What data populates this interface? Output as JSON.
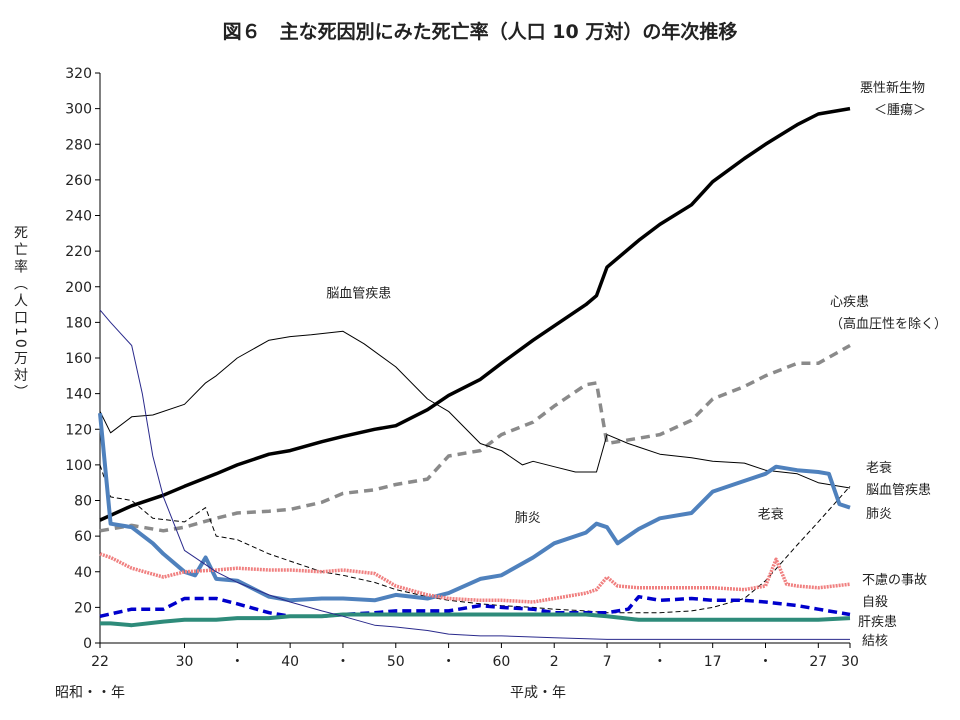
{
  "chart_data": {
    "type": "line",
    "title": "図６　主な死因別にみた死亡率（人口 10 万対）の年次推移",
    "ylabel": "死亡率（人口10万対）",
    "ylim": [
      0,
      320
    ],
    "yticks": [
      0,
      20,
      40,
      60,
      80,
      100,
      120,
      140,
      160,
      180,
      200,
      220,
      240,
      260,
      280,
      300,
      320
    ],
    "xlim": [
      1947,
      2018
    ],
    "xticks": [
      {
        "year": 1947,
        "label": "22"
      },
      {
        "year": 1955,
        "label": "30"
      },
      {
        "year": 1960,
        "label": "・"
      },
      {
        "year": 1965,
        "label": "40"
      },
      {
        "year": 1970,
        "label": "・"
      },
      {
        "year": 1975,
        "label": "50"
      },
      {
        "year": 1980,
        "label": "・"
      },
      {
        "year": 1985,
        "label": "60"
      },
      {
        "year": 1990,
        "label": "2"
      },
      {
        "year": 1995,
        "label": "7"
      },
      {
        "year": 2000,
        "label": "・"
      },
      {
        "year": 2005,
        "label": "17"
      },
      {
        "year": 2010,
        "label": "・"
      },
      {
        "year": 2015,
        "label": "27"
      },
      {
        "year": 2018,
        "label": "30"
      }
    ],
    "x_era_labels": [
      "昭和・・年",
      "平成・年"
    ],
    "grid": false,
    "series": [
      {
        "name": "悪性新生物",
        "label_lines": [
          "悪性新生物",
          "＜腫瘍＞"
        ],
        "color": "#000000",
        "width": 3.5,
        "dash": "",
        "points": [
          [
            1947,
            69
          ],
          [
            1950,
            77
          ],
          [
            1953,
            83
          ],
          [
            1955,
            88
          ],
          [
            1958,
            95
          ],
          [
            1960,
            100
          ],
          [
            1963,
            106
          ],
          [
            1965,
            108
          ],
          [
            1968,
            113
          ],
          [
            1970,
            116
          ],
          [
            1973,
            120
          ],
          [
            1975,
            122
          ],
          [
            1978,
            131
          ],
          [
            1980,
            139
          ],
          [
            1983,
            148
          ],
          [
            1985,
            157
          ],
          [
            1988,
            170
          ],
          [
            1990,
            178
          ],
          [
            1993,
            190
          ],
          [
            1994,
            195
          ],
          [
            1995,
            211
          ],
          [
            1998,
            226
          ],
          [
            2000,
            235
          ],
          [
            2003,
            246
          ],
          [
            2005,
            259
          ],
          [
            2008,
            272
          ],
          [
            2010,
            280
          ],
          [
            2013,
            291
          ],
          [
            2015,
            297
          ],
          [
            2018,
            300
          ]
        ]
      },
      {
        "name": "心疾患",
        "label_lines": [
          "心疾患",
          "（高血圧性を除く）"
        ],
        "color": "#8a8a8a",
        "width": 3.5,
        "dash": "9,6",
        "points": [
          [
            1947,
            63
          ],
          [
            1950,
            66
          ],
          [
            1953,
            63
          ],
          [
            1955,
            65
          ],
          [
            1958,
            70
          ],
          [
            1960,
            73
          ],
          [
            1963,
            74
          ],
          [
            1965,
            75
          ],
          [
            1968,
            79
          ],
          [
            1970,
            84
          ],
          [
            1973,
            86
          ],
          [
            1975,
            89
          ],
          [
            1978,
            92
          ],
          [
            1980,
            105
          ],
          [
            1983,
            108
          ],
          [
            1985,
            117
          ],
          [
            1988,
            124
          ],
          [
            1990,
            133
          ],
          [
            1993,
            145
          ],
          [
            1994,
            146
          ],
          [
            1995,
            112
          ],
          [
            1998,
            115
          ],
          [
            2000,
            117
          ],
          [
            2003,
            125
          ],
          [
            2005,
            137
          ],
          [
            2008,
            144
          ],
          [
            2010,
            150
          ],
          [
            2013,
            157
          ],
          [
            2015,
            157
          ],
          [
            2018,
            167
          ]
        ]
      },
      {
        "name": "老衰",
        "label_lines": [
          "老衰"
        ],
        "color": "#000000",
        "width": 1,
        "dash": "5,3",
        "points": [
          [
            1947,
            100
          ],
          [
            1948,
            82
          ],
          [
            1950,
            80
          ],
          [
            1952,
            70
          ],
          [
            1955,
            68
          ],
          [
            1957,
            76
          ],
          [
            1958,
            60
          ],
          [
            1960,
            58
          ],
          [
            1963,
            50
          ],
          [
            1965,
            46
          ],
          [
            1968,
            40
          ],
          [
            1970,
            38
          ],
          [
            1973,
            34
          ],
          [
            1975,
            30
          ],
          [
            1978,
            26
          ],
          [
            1980,
            24
          ],
          [
            1983,
            22
          ],
          [
            1985,
            21
          ],
          [
            1988,
            20
          ],
          [
            1990,
            19
          ],
          [
            1993,
            18
          ],
          [
            1995,
            17
          ],
          [
            1998,
            17
          ],
          [
            2000,
            17
          ],
          [
            2003,
            18
          ],
          [
            2005,
            20
          ],
          [
            2008,
            25
          ],
          [
            2010,
            35
          ],
          [
            2013,
            55
          ],
          [
            2015,
            68
          ],
          [
            2018,
            88
          ]
        ]
      },
      {
        "name": "脳血管疾患",
        "label_lines": [
          "脳血管疾患"
        ],
        "color": "#000000",
        "width": 1,
        "dash": "",
        "points": [
          [
            1947,
            130
          ],
          [
            1948,
            118
          ],
          [
            1950,
            127
          ],
          [
            1952,
            128
          ],
          [
            1955,
            134
          ],
          [
            1957,
            146
          ],
          [
            1958,
            150
          ],
          [
            1960,
            160
          ],
          [
            1963,
            170
          ],
          [
            1965,
            172
          ],
          [
            1967,
            173
          ],
          [
            1970,
            175
          ],
          [
            1972,
            168
          ],
          [
            1975,
            155
          ],
          [
            1978,
            137
          ],
          [
            1980,
            130
          ],
          [
            1983,
            112
          ],
          [
            1985,
            108
          ],
          [
            1987,
            100
          ],
          [
            1988,
            102
          ],
          [
            1990,
            99
          ],
          [
            1992,
            96
          ],
          [
            1994,
            96
          ],
          [
            1995,
            117
          ],
          [
            1997,
            112
          ],
          [
            2000,
            106
          ],
          [
            2003,
            104
          ],
          [
            2005,
            102
          ],
          [
            2008,
            101
          ],
          [
            2010,
            97
          ],
          [
            2013,
            95
          ],
          [
            2015,
            90
          ],
          [
            2018,
            87
          ]
        ]
      },
      {
        "name": "肺炎",
        "label_lines": [
          "肺炎"
        ],
        "color": "#4f81bd",
        "width": 4,
        "dash": "",
        "points": [
          [
            1947,
            129
          ],
          [
            1948,
            67
          ],
          [
            1950,
            65
          ],
          [
            1952,
            56
          ],
          [
            1953,
            50
          ],
          [
            1955,
            40
          ],
          [
            1956,
            38
          ],
          [
            1957,
            48
          ],
          [
            1958,
            36
          ],
          [
            1960,
            35
          ],
          [
            1963,
            26
          ],
          [
            1965,
            24
          ],
          [
            1968,
            25
          ],
          [
            1970,
            25
          ],
          [
            1973,
            24
          ],
          [
            1975,
            27
          ],
          [
            1978,
            25
          ],
          [
            1980,
            28
          ],
          [
            1983,
            36
          ],
          [
            1985,
            38
          ],
          [
            1988,
            48
          ],
          [
            1990,
            56
          ],
          [
            1993,
            62
          ],
          [
            1994,
            67
          ],
          [
            1995,
            65
          ],
          [
            1996,
            56
          ],
          [
            1998,
            64
          ],
          [
            2000,
            70
          ],
          [
            2003,
            73
          ],
          [
            2005,
            85
          ],
          [
            2008,
            91
          ],
          [
            2010,
            95
          ],
          [
            2011,
            99
          ],
          [
            2013,
            97
          ],
          [
            2015,
            96
          ],
          [
            2016,
            95
          ],
          [
            2017,
            78
          ],
          [
            2018,
            76
          ]
        ]
      },
      {
        "name": "不慮の事故",
        "label_lines": [
          "不慮の事故"
        ],
        "color": "#f08080",
        "width": 3.5,
        "dash": "2,1",
        "points": [
          [
            1947,
            50
          ],
          [
            1948,
            48
          ],
          [
            1950,
            42
          ],
          [
            1953,
            37
          ],
          [
            1955,
            40
          ],
          [
            1958,
            41
          ],
          [
            1960,
            42
          ],
          [
            1963,
            41
          ],
          [
            1965,
            41
          ],
          [
            1968,
            40
          ],
          [
            1970,
            41
          ],
          [
            1973,
            39
          ],
          [
            1975,
            32
          ],
          [
            1978,
            27
          ],
          [
            1980,
            25
          ],
          [
            1983,
            24
          ],
          [
            1985,
            24
          ],
          [
            1988,
            23
          ],
          [
            1990,
            25
          ],
          [
            1993,
            28
          ],
          [
            1994,
            30
          ],
          [
            1995,
            37
          ],
          [
            1996,
            32
          ],
          [
            1998,
            31
          ],
          [
            2000,
            31
          ],
          [
            2003,
            31
          ],
          [
            2005,
            31
          ],
          [
            2008,
            30
          ],
          [
            2010,
            32
          ],
          [
            2011,
            47
          ],
          [
            2012,
            33
          ],
          [
            2013,
            32
          ],
          [
            2015,
            31
          ],
          [
            2018,
            33
          ]
        ]
      },
      {
        "name": "自殺",
        "label_lines": [
          "自殺"
        ],
        "color": "#0000cc",
        "width": 3.5,
        "dash": "9,5",
        "points": [
          [
            1947,
            15
          ],
          [
            1950,
            19
          ],
          [
            1953,
            19
          ],
          [
            1955,
            25
          ],
          [
            1958,
            25
          ],
          [
            1960,
            22
          ],
          [
            1963,
            17
          ],
          [
            1965,
            15
          ],
          [
            1968,
            15
          ],
          [
            1970,
            16
          ],
          [
            1973,
            17
          ],
          [
            1975,
            18
          ],
          [
            1978,
            18
          ],
          [
            1980,
            18
          ],
          [
            1983,
            21
          ],
          [
            1985,
            20
          ],
          [
            1988,
            19
          ],
          [
            1990,
            17
          ],
          [
            1993,
            17
          ],
          [
            1995,
            17
          ],
          [
            1997,
            19
          ],
          [
            1998,
            26
          ],
          [
            2000,
            24
          ],
          [
            2003,
            25
          ],
          [
            2005,
            24
          ],
          [
            2008,
            24
          ],
          [
            2010,
            23
          ],
          [
            2013,
            21
          ],
          [
            2015,
            19
          ],
          [
            2018,
            16
          ]
        ]
      },
      {
        "name": "肝疾患",
        "label_lines": [
          "肝疾患"
        ],
        "color": "#2e8b7a",
        "width": 4,
        "dash": "",
        "points": [
          [
            1947,
            11
          ],
          [
            1948,
            11
          ],
          [
            1950,
            10
          ],
          [
            1953,
            12
          ],
          [
            1955,
            13
          ],
          [
            1958,
            13
          ],
          [
            1960,
            14
          ],
          [
            1963,
            14
          ],
          [
            1965,
            15
          ],
          [
            1968,
            15
          ],
          [
            1970,
            16
          ],
          [
            1973,
            16
          ],
          [
            1975,
            16
          ],
          [
            1978,
            16
          ],
          [
            1980,
            16
          ],
          [
            1983,
            16
          ],
          [
            1985,
            16
          ],
          [
            1988,
            16
          ],
          [
            1990,
            16
          ],
          [
            1993,
            16
          ],
          [
            1995,
            15
          ],
          [
            1998,
            13
          ],
          [
            2000,
            13
          ],
          [
            2003,
            13
          ],
          [
            2005,
            13
          ],
          [
            2008,
            13
          ],
          [
            2010,
            13
          ],
          [
            2013,
            13
          ],
          [
            2015,
            13
          ],
          [
            2018,
            14
          ]
        ]
      },
      {
        "name": "結核",
        "label_lines": [
          "結核"
        ],
        "color": "#2a2a8c",
        "width": 1,
        "dash": "",
        "points": [
          [
            1947,
            187
          ],
          [
            1948,
            180
          ],
          [
            1950,
            167
          ],
          [
            1951,
            140
          ],
          [
            1952,
            105
          ],
          [
            1953,
            82
          ],
          [
            1955,
            52
          ],
          [
            1958,
            40
          ],
          [
            1960,
            34
          ],
          [
            1963,
            27
          ],
          [
            1965,
            23
          ],
          [
            1968,
            18
          ],
          [
            1970,
            15
          ],
          [
            1973,
            10
          ],
          [
            1975,
            9
          ],
          [
            1978,
            7
          ],
          [
            1980,
            5
          ],
          [
            1983,
            4
          ],
          [
            1985,
            4
          ],
          [
            1990,
            3
          ],
          [
            1995,
            2
          ],
          [
            2000,
            2
          ],
          [
            2005,
            2
          ],
          [
            2010,
            2
          ],
          [
            2015,
            2
          ],
          [
            2018,
            2
          ]
        ]
      }
    ],
    "annotations": [
      {
        "text": "脳血管疾患",
        "x": 1971.5,
        "y": 194
      },
      {
        "text": "肺炎",
        "x": 1987.5,
        "y": 68
      },
      {
        "text": "老衰",
        "x": 2010.5,
        "y": 70
      }
    ]
  }
}
